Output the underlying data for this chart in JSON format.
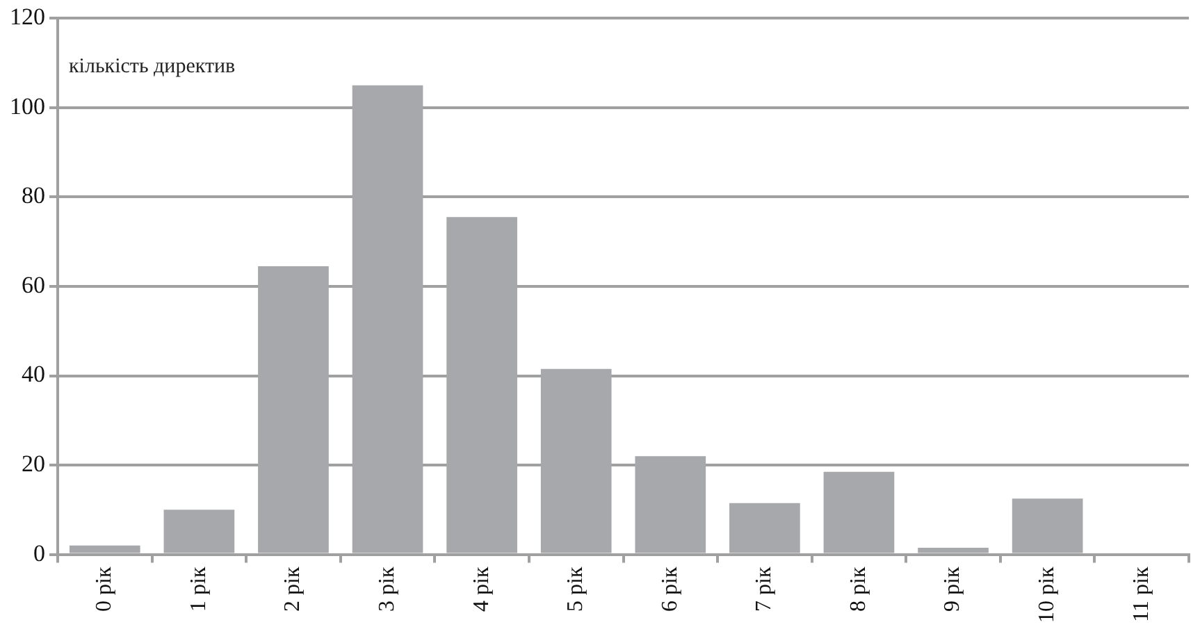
{
  "chart_data": {
    "type": "bar",
    "ylabel": "кількість директив",
    "categories": [
      "0 рік",
      "1 рік",
      "2 рік",
      "3 рік",
      "4 рік",
      "5 рік",
      "6 рік",
      "7 рік",
      "8 рік",
      "9 рік",
      "10 рік",
      "11 рік"
    ],
    "values": [
      2,
      10,
      64.5,
      105,
      75.5,
      41.5,
      22,
      11.5,
      18.5,
      1.5,
      12.5,
      0
    ],
    "color": "#a7a8ab",
    "ylim": [
      0,
      120
    ],
    "yticks": [
      0,
      20,
      40,
      60,
      80,
      100,
      120
    ],
    "grid": "y"
  }
}
